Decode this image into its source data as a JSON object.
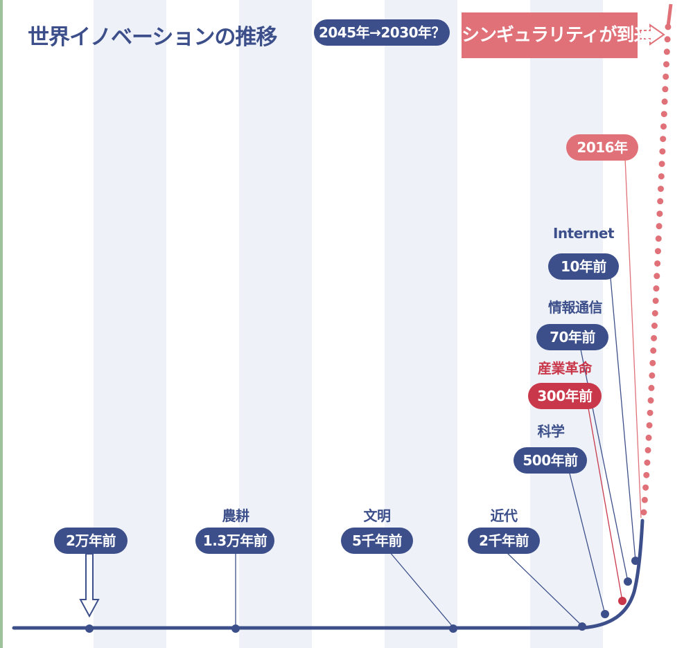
{
  "title": "世界イノベーションの推移",
  "forecast": "2045年→2030年？",
  "singularity": "シンギュラリティが到来",
  "current_year": "2016年",
  "milestones": [
    {
      "label": "",
      "period": "2万年前"
    },
    {
      "label": "農耕",
      "period": "1.3万年前"
    },
    {
      "label": "文明",
      "period": "5千年前"
    },
    {
      "label": "近代",
      "period": "2千年前"
    },
    {
      "label": "科学",
      "period": "500年前"
    },
    {
      "label": "産業革命",
      "period": "300年前"
    },
    {
      "label": "情報通信",
      "period": "70年前"
    },
    {
      "label": "Internet",
      "period": "10年前"
    }
  ],
  "colors": {
    "navy": "#3c4f8a",
    "accent_red": "#c9374a",
    "pink": "#e07178",
    "stripe": "#eef2f8"
  }
}
